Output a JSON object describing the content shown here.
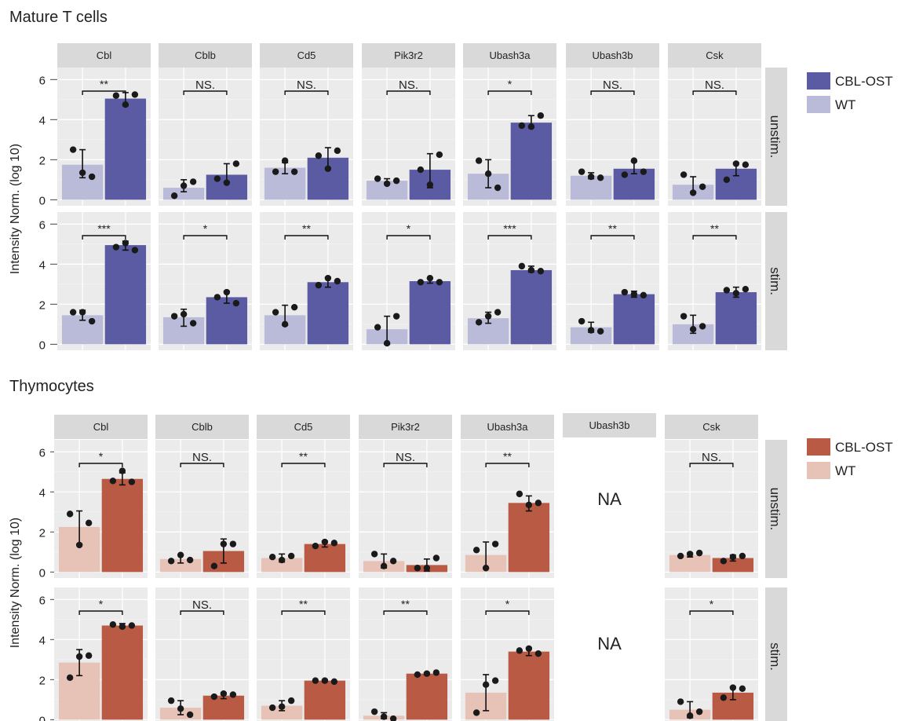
{
  "colors": {
    "panel_bg": "#ebebeb",
    "strip_bg": "#d9d9d9",
    "grid": "#ffffff",
    "point": "#1a1a1a",
    "mature_ost": "#5b5ba3",
    "mature_wt": "#babbd9",
    "thymo_ost": "#b95a45",
    "thymo_wt": "#e6c3b6"
  },
  "chart_data": [
    {
      "type": "bar",
      "title": "Mature   T cells",
      "ylabel": "Intensity Norm. (log 10)",
      "ylim": [
        -0.3,
        6.6
      ],
      "yticks": [
        0,
        2,
        4,
        6
      ],
      "grid": true,
      "legend_position": "right",
      "series": [
        {
          "name": "CBL-OST",
          "color": "#5b5ba3"
        },
        {
          "name": "WT",
          "color": "#babbd9"
        }
      ],
      "columns": [
        "Cbl",
        "Cblb",
        "Cd5",
        "Pik3r2",
        "Ubash3a",
        "Ubash3b",
        "Csk"
      ],
      "rows": [
        "unstim.",
        "stim."
      ],
      "cells": [
        [
          {
            "wt": 1.75,
            "ost": 5.05,
            "wt_err": [
              1.1,
              2.5
            ],
            "ost_err": [
              4.7,
              5.35
            ],
            "wt_pts": [
              2.5,
              1.35,
              1.15
            ],
            "ost_pts": [
              5.2,
              4.75,
              5.25
            ],
            "sig": "**"
          },
          {
            "wt": 0.6,
            "ost": 1.25,
            "wt_err": [
              0.4,
              1.0
            ],
            "ost_err": [
              0.9,
              1.8
            ],
            "wt_pts": [
              0.2,
              0.7,
              0.9
            ],
            "ost_pts": [
              1.05,
              0.85,
              1.8
            ],
            "sig": "NS."
          },
          {
            "wt": 1.6,
            "ost": 2.1,
            "wt_err": [
              1.3,
              1.85
            ],
            "ost_err": [
              1.6,
              2.6
            ],
            "wt_pts": [
              1.4,
              1.95,
              1.4
            ],
            "ost_pts": [
              2.2,
              1.55,
              2.45
            ],
            "sig": "NS."
          },
          {
            "wt": 0.95,
            "ost": 1.5,
            "wt_err": [
              0.85,
              1.05
            ],
            "ost_err": [
              0.6,
              2.3
            ],
            "wt_pts": [
              1.05,
              0.8,
              0.95
            ],
            "ost_pts": [
              1.5,
              0.75,
              2.25
            ],
            "sig": "NS."
          },
          {
            "wt": 1.3,
            "ost": 3.85,
            "wt_err": [
              0.6,
              2.0
            ],
            "ost_err": [
              3.6,
              4.2
            ],
            "wt_pts": [
              1.95,
              1.3,
              0.6
            ],
            "ost_pts": [
              3.7,
              3.65,
              4.2
            ],
            "sig": "*"
          },
          {
            "wt": 1.2,
            "ost": 1.55,
            "wt_err": [
              1.05,
              1.35
            ],
            "ost_err": [
              1.3,
              1.9
            ],
            "wt_pts": [
              1.4,
              1.15,
              1.1
            ],
            "ost_pts": [
              1.25,
              1.95,
              1.4
            ],
            "sig": "NS."
          },
          {
            "wt": 0.75,
            "ost": 1.55,
            "wt_err": [
              0.4,
              1.15
            ],
            "ost_err": [
              1.2,
              1.85
            ],
            "wt_pts": [
              1.25,
              0.35,
              0.65
            ],
            "ost_pts": [
              1.0,
              1.8,
              1.75
            ],
            "sig": "NS."
          }
        ],
        [
          {
            "wt": 1.45,
            "ost": 4.95,
            "wt_err": [
              1.2,
              1.7
            ],
            "ost_err": [
              4.7,
              5.15
            ],
            "wt_pts": [
              1.6,
              1.6,
              1.15
            ],
            "ost_pts": [
              4.85,
              5.05,
              4.7
            ],
            "sig": "***"
          },
          {
            "wt": 1.35,
            "ost": 2.35,
            "wt_err": [
              0.9,
              1.75
            ],
            "ost_err": [
              2.05,
              2.65
            ],
            "wt_pts": [
              1.4,
              1.5,
              1.05
            ],
            "ost_pts": [
              2.35,
              2.6,
              2.05
            ],
            "sig": "*"
          },
          {
            "wt": 1.45,
            "ost": 3.1,
            "wt_err": [
              0.95,
              1.95
            ],
            "ost_err": [
              2.85,
              3.35
            ],
            "wt_pts": [
              1.6,
              1.0,
              1.85
            ],
            "ost_pts": [
              2.95,
              3.3,
              3.15
            ],
            "sig": "**"
          },
          {
            "wt": 0.75,
            "ost": 3.15,
            "wt_err": [
              0.0,
              1.4
            ],
            "ost_err": [
              3.05,
              3.3
            ],
            "wt_pts": [
              0.85,
              0.05,
              1.4
            ],
            "ost_pts": [
              3.1,
              3.3,
              3.1
            ],
            "sig": "*"
          },
          {
            "wt": 1.3,
            "ost": 3.7,
            "wt_err": [
              1.05,
              1.6
            ],
            "ost_err": [
              3.6,
              3.9
            ],
            "wt_pts": [
              1.1,
              1.4,
              1.6
            ],
            "ost_pts": [
              3.9,
              3.7,
              3.65
            ],
            "sig": "***"
          },
          {
            "wt": 0.85,
            "ost": 2.5,
            "wt_err": [
              0.6,
              1.1
            ],
            "ost_err": [
              2.35,
              2.65
            ],
            "wt_pts": [
              1.15,
              0.7,
              0.65
            ],
            "ost_pts": [
              2.6,
              2.5,
              2.45
            ],
            "sig": "**"
          },
          {
            "wt": 1.0,
            "ost": 2.6,
            "wt_err": [
              0.55,
              1.45
            ],
            "ost_err": [
              2.35,
              2.85
            ],
            "wt_pts": [
              1.4,
              0.75,
              0.9
            ],
            "ost_pts": [
              2.7,
              2.55,
              2.75
            ],
            "sig": "**"
          }
        ]
      ]
    },
    {
      "type": "bar",
      "title": "Thymocytes",
      "ylabel": "Intensity Norm. (log 10)",
      "ylim": [
        -0.3,
        6.6
      ],
      "yticks": [
        0,
        2,
        4,
        6
      ],
      "grid": true,
      "legend_position": "right",
      "series": [
        {
          "name": "CBL-OST",
          "color": "#b95a45"
        },
        {
          "name": "WT",
          "color": "#e6c3b6"
        }
      ],
      "columns": [
        "Cbl",
        "Cblb",
        "Cd5",
        "Pik3r2",
        "Ubash3a",
        "Ubash3b",
        "Csk"
      ],
      "rows": [
        "unstim.",
        "stim."
      ],
      "na_label": "NA",
      "cells": [
        [
          {
            "wt": 2.25,
            "ost": 4.65,
            "wt_err": [
              1.4,
              3.05
            ],
            "ost_err": [
              4.35,
              4.95
            ],
            "wt_pts": [
              2.9,
              1.35,
              2.45
            ],
            "ost_pts": [
              4.55,
              5.05,
              4.5
            ],
            "sig": "*"
          },
          {
            "wt": 0.65,
            "ost": 1.05,
            "wt_err": [
              0.45,
              0.85
            ],
            "ost_err": [
              0.45,
              1.65
            ],
            "wt_pts": [
              0.55,
              0.85,
              0.6
            ],
            "ost_pts": [
              0.3,
              1.4,
              1.4
            ],
            "sig": "NS."
          },
          {
            "wt": 0.7,
            "ost": 1.4,
            "wt_err": [
              0.5,
              0.9
            ],
            "ost_err": [
              1.25,
              1.55
            ],
            "wt_pts": [
              0.75,
              0.6,
              0.8
            ],
            "ost_pts": [
              1.3,
              1.5,
              1.45
            ],
            "sig": "**"
          },
          {
            "wt": 0.55,
            "ost": 0.35,
            "wt_err": [
              0.2,
              0.9
            ],
            "ost_err": [
              0.05,
              0.65
            ],
            "wt_pts": [
              0.9,
              0.3,
              0.55
            ],
            "ost_pts": [
              0.2,
              0.2,
              0.7
            ],
            "sig": "NS."
          },
          {
            "wt": 0.85,
            "ost": 3.45,
            "wt_err": [
              0.2,
              1.5
            ],
            "ost_err": [
              3.05,
              3.8
            ],
            "wt_pts": [
              1.1,
              0.2,
              1.4
            ],
            "ost_pts": [
              3.9,
              3.35,
              3.45
            ],
            "sig": "**"
          },
          null,
          {
            "wt": 0.85,
            "ost": 0.7,
            "wt_err": [
              0.75,
              0.95
            ],
            "ost_err": [
              0.55,
              0.85
            ],
            "wt_pts": [
              0.8,
              0.9,
              0.95
            ],
            "ost_pts": [
              0.55,
              0.75,
              0.8
            ],
            "sig": "NS."
          }
        ],
        [
          {
            "wt": 2.85,
            "ost": 4.7,
            "wt_err": [
              2.2,
              3.5
            ],
            "ost_err": [
              4.6,
              4.8
            ],
            "wt_pts": [
              2.1,
              3.15,
              3.2
            ],
            "ost_pts": [
              4.75,
              4.65,
              4.7
            ],
            "sig": "*"
          },
          {
            "wt": 0.6,
            "ost": 1.2,
            "wt_err": [
              0.25,
              0.95
            ],
            "ost_err": [
              1.05,
              1.35
            ],
            "wt_pts": [
              0.95,
              0.55,
              0.25
            ],
            "ost_pts": [
              1.15,
              1.3,
              1.25
            ],
            "sig": "NS."
          },
          {
            "wt": 0.7,
            "ost": 1.95,
            "wt_err": [
              0.45,
              0.95
            ],
            "ost_err": [
              1.9,
              2.0
            ],
            "wt_pts": [
              0.6,
              0.65,
              0.95
            ],
            "ost_pts": [
              1.95,
              1.95,
              1.9
            ],
            "sig": "**"
          },
          {
            "wt": 0.2,
            "ost": 2.3,
            "wt_err": [
              0.05,
              0.35
            ],
            "ost_err": [
              2.25,
              2.35
            ],
            "wt_pts": [
              0.4,
              0.15,
              0.05
            ],
            "ost_pts": [
              2.25,
              2.3,
              2.35
            ],
            "sig": "**"
          },
          {
            "wt": 1.35,
            "ost": 3.4,
            "wt_err": [
              0.45,
              2.25
            ],
            "ost_err": [
              3.2,
              3.6
            ],
            "wt_pts": [
              0.35,
              1.75,
              1.95
            ],
            "ost_pts": [
              3.45,
              3.55,
              3.3
            ],
            "sig": "*"
          },
          null,
          {
            "wt": 0.5,
            "ost": 1.35,
            "wt_err": [
              0.1,
              0.9
            ],
            "ost_err": [
              1.0,
              1.65
            ],
            "wt_pts": [
              0.9,
              0.2,
              0.4
            ],
            "ost_pts": [
              1.1,
              1.6,
              1.55
            ],
            "sig": "*"
          }
        ]
      ]
    }
  ]
}
